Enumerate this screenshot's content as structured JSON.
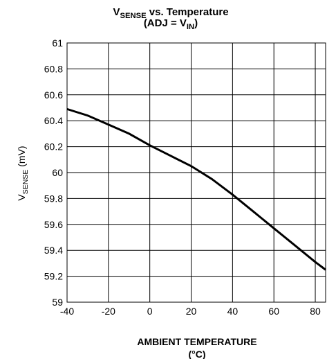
{
  "chart_data": {
    "type": "line",
    "title": [
      {
        "text": "V"
      },
      {
        "text": "SENSE",
        "sub": true
      },
      {
        "text": " vs. Temperature"
      }
    ],
    "subtitle": [
      {
        "text": "(ADJ = V"
      },
      {
        "text": "IN",
        "sub": true
      },
      {
        "text": ")"
      }
    ],
    "y_label": [
      {
        "text": "V"
      },
      {
        "text": "SENSE",
        "sub": true
      },
      {
        "text": " (mV)"
      }
    ],
    "x_label": [
      "AMBIENT TEMPERATURE",
      "(°C)"
    ],
    "grid": true,
    "xlim": [
      -40,
      85
    ],
    "xticks": [
      -40,
      -20,
      0,
      20,
      40,
      60,
      80
    ],
    "ylim": [
      59,
      61
    ],
    "yticks": [
      59,
      59.2,
      59.4,
      59.6,
      59.8,
      60,
      60.2,
      60.4,
      60.6,
      60.8,
      61
    ],
    "x": [
      -40,
      -30,
      -20,
      -10,
      0,
      10,
      20,
      30,
      40,
      50,
      60,
      70,
      80,
      85
    ],
    "series": [
      {
        "color": "#000000",
        "values": [
          60.49,
          60.44,
          60.37,
          60.3,
          60.21,
          60.13,
          60.05,
          59.95,
          59.83,
          59.7,
          59.57,
          59.44,
          59.31,
          59.25
        ]
      }
    ]
  }
}
